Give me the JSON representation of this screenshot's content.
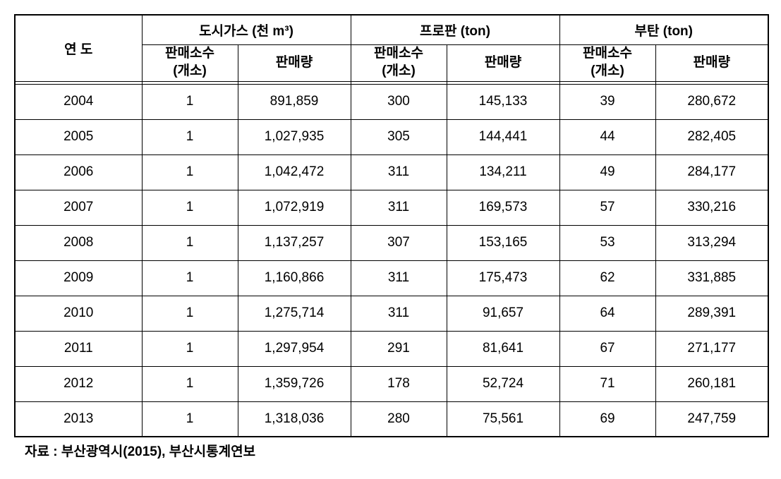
{
  "table": {
    "columns": {
      "year": "연 도",
      "groups": [
        {
          "label": "도시가스 (천 m³)",
          "sub1": "판매소수\n(개소)",
          "sub2": "판매량"
        },
        {
          "label": "프로판 (ton)",
          "sub1": "판매소수\n(개소)",
          "sub2": "판매량"
        },
        {
          "label": "부탄 (ton)",
          "sub1": "판매소수\n(개소)",
          "sub2": "판매량"
        }
      ]
    },
    "rows": [
      {
        "year": "2004",
        "c1s": "1",
        "c1v": "891,859",
        "c2s": "300",
        "c2v": "145,133",
        "c3s": "39",
        "c3v": "280,672"
      },
      {
        "year": "2005",
        "c1s": "1",
        "c1v": "1,027,935",
        "c2s": "305",
        "c2v": "144,441",
        "c3s": "44",
        "c3v": "282,405"
      },
      {
        "year": "2006",
        "c1s": "1",
        "c1v": "1,042,472",
        "c2s": "311",
        "c2v": "134,211",
        "c3s": "49",
        "c3v": "284,177"
      },
      {
        "year": "2007",
        "c1s": "1",
        "c1v": "1,072,919",
        "c2s": "311",
        "c2v": "169,573",
        "c3s": "57",
        "c3v": "330,216"
      },
      {
        "year": "2008",
        "c1s": "1",
        "c1v": "1,137,257",
        "c2s": "307",
        "c2v": "153,165",
        "c3s": "53",
        "c3v": "313,294"
      },
      {
        "year": "2009",
        "c1s": "1",
        "c1v": "1,160,866",
        "c2s": "311",
        "c2v": "175,473",
        "c3s": "62",
        "c3v": "331,885"
      },
      {
        "year": "2010",
        "c1s": "1",
        "c1v": "1,275,714",
        "c2s": "311",
        "c2v": "91,657",
        "c3s": "64",
        "c3v": "289,391"
      },
      {
        "year": "2011",
        "c1s": "1",
        "c1v": "1,297,954",
        "c2s": "291",
        "c2v": "81,641",
        "c3s": "67",
        "c3v": "271,177"
      },
      {
        "year": "2012",
        "c1s": "1",
        "c1v": "1,359,726",
        "c2s": "178",
        "c2v": "52,724",
        "c3s": "71",
        "c3v": "260,181"
      },
      {
        "year": "2013",
        "c1s": "1",
        "c1v": "1,318,036",
        "c2s": "280",
        "c2v": "75,561",
        "c3s": "69",
        "c3v": "247,759"
      }
    ]
  },
  "source": "자료 : 부산광역시(2015), 부산시통계연보"
}
